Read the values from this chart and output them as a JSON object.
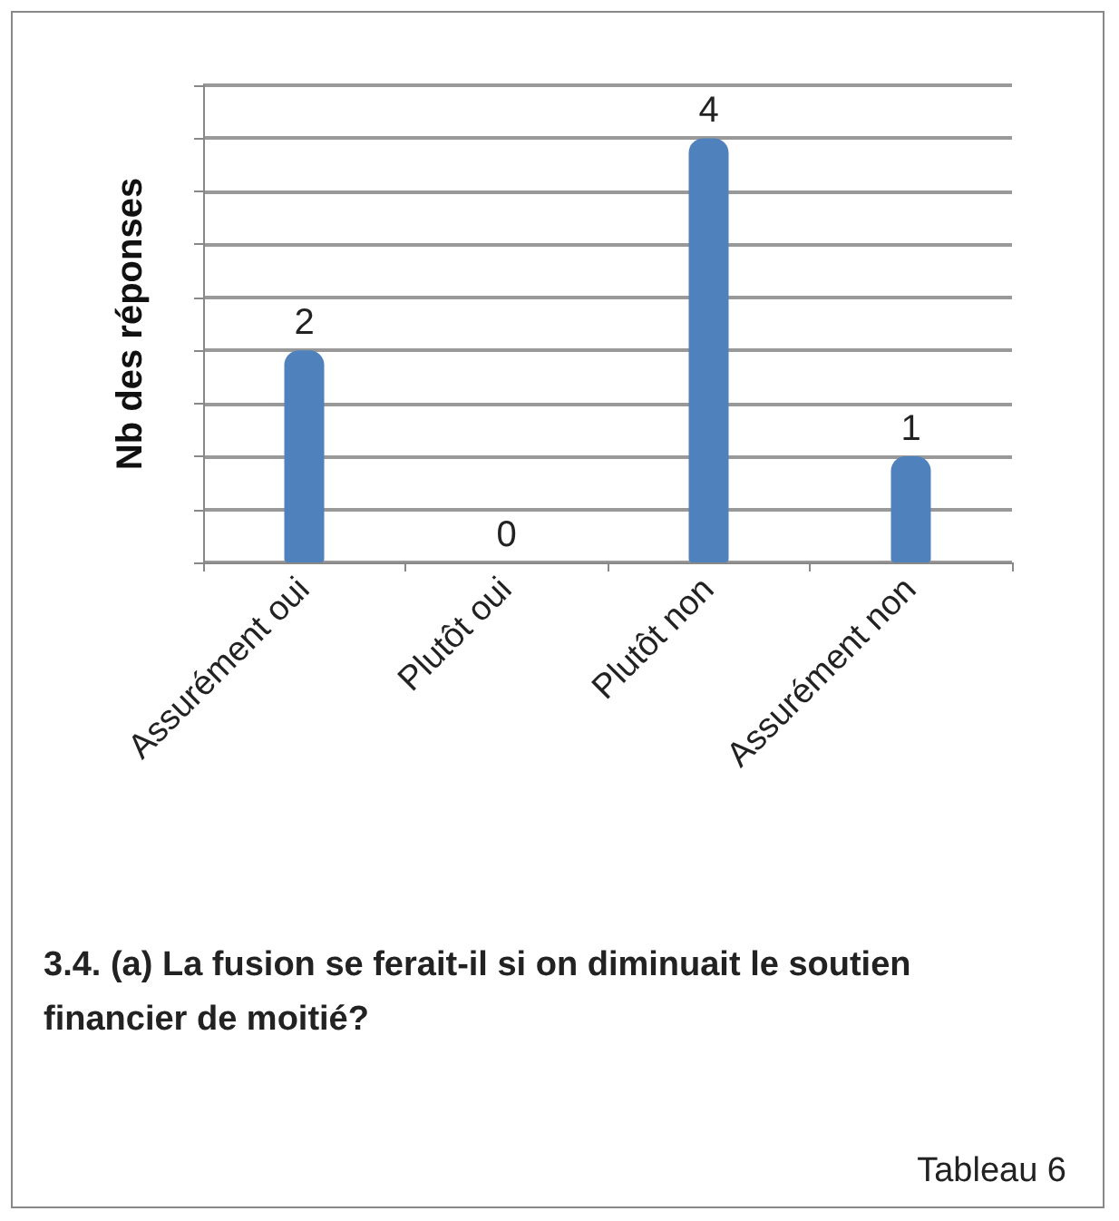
{
  "chart_data": {
    "type": "bar",
    "title": "3.4. (a) La fusion se ferait-il si on diminuait le soutien financier de moitié?",
    "ylabel": "Nb des réponses",
    "annotations": [
      "Tableau 6"
    ],
    "categories": [
      "Assurément oui",
      "Plutôt oui",
      "Plutôt non",
      "Assurément non"
    ],
    "values": [
      2,
      0,
      4,
      1
    ],
    "color": "#4f81bd",
    "data_labels": true,
    "ylim": [
      0,
      4.5
    ],
    "yticks": [
      {
        "value": 0,
        "label": null
      },
      {
        "value": 0.5,
        "label": null
      },
      {
        "value": 1,
        "label": null
      },
      {
        "value": 1.5,
        "label": null
      },
      {
        "value": 2,
        "label": null
      },
      {
        "value": 2.5,
        "label": null
      },
      {
        "value": 3,
        "label": null
      },
      {
        "value": 3.5,
        "label": null
      },
      {
        "value": 4,
        "label": null
      },
      {
        "value": 4.5,
        "label": null
      }
    ],
    "grid": "y",
    "tick_labels": "x"
  }
}
